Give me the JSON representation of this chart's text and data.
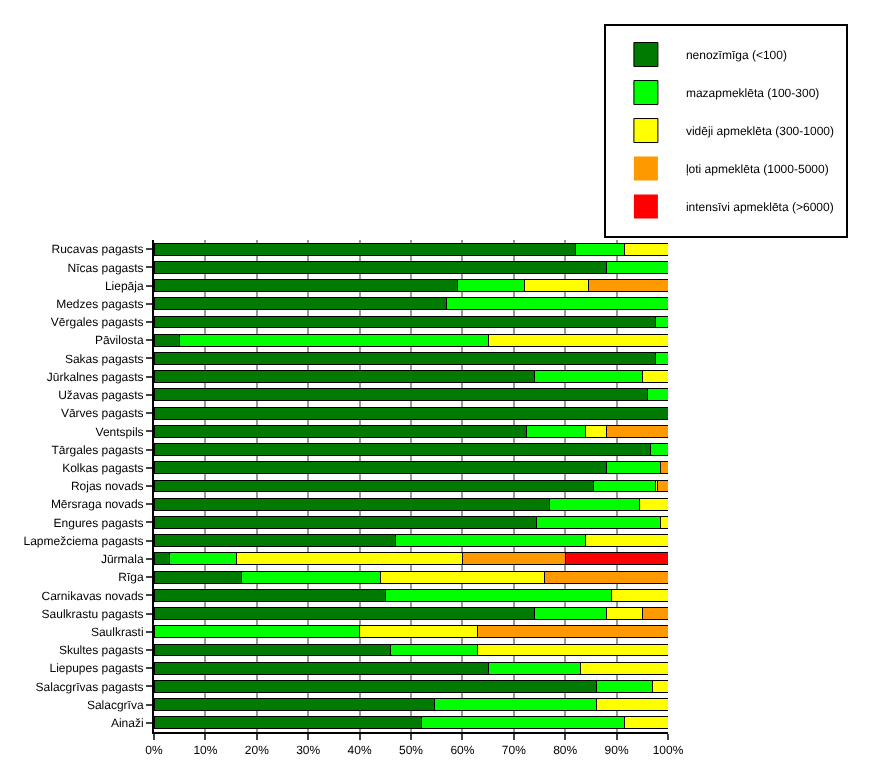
{
  "chart_data": {
    "type": "bar",
    "orientation": "horizontal",
    "stacked": true,
    "categories": [
      "Rucavas pagasts",
      "Nīcas pagasts",
      "Liepāja",
      "Medzes pagasts",
      "Vērgales pagasts",
      "Pāvilosta",
      "Sakas pagasts",
      "Jūrkalnes pagasts",
      "Užavas pagasts",
      "Vārves pagasts",
      "Ventspils",
      "Tārgales pagasts",
      "Kolkas pagasts",
      "Rojas novads",
      "Mērsraga novads",
      "Engures pagasts",
      "Lapmežciema pagasts",
      "Jūrmala",
      "Rīga",
      "Carnikavas novads",
      "Saulkrastu pagasts",
      "Saulkrasti",
      "Skultes pagasts",
      "Liepupes pagasts",
      "Salacgrīvas pagasts",
      "Salacgrīva",
      "Ainaži"
    ],
    "series": [
      {
        "name": "nenozīmīga (<100)",
        "color": "#007a00",
        "values": [
          82,
          88,
          59,
          57,
          97.5,
          5,
          97.5,
          74,
          96,
          100,
          72.5,
          96.5,
          88,
          85.5,
          77,
          74.5,
          47,
          3,
          17,
          45,
          74,
          0,
          46,
          65,
          86,
          54.5,
          52
        ]
      },
      {
        "name": "mazapmeklēta (100-300)",
        "color": "#00ff00",
        "values": [
          9.5,
          12,
          13,
          43,
          2.5,
          60,
          2.5,
          21,
          4,
          0,
          11.5,
          3.5,
          10.5,
          12,
          17.5,
          24,
          37,
          13,
          27,
          44,
          14,
          40,
          17,
          18,
          11,
          31.5,
          39.5
        ]
      },
      {
        "name": "vidēji apmeklēta (300-1000)",
        "color": "#ffff00",
        "values": [
          8.5,
          0,
          12.5,
          0,
          0,
          35,
          0,
          5,
          0,
          0,
          4,
          0,
          0,
          0.5,
          5.5,
          1.5,
          16,
          44,
          32,
          11,
          7,
          23,
          37,
          17,
          3,
          14,
          8.5
        ]
      },
      {
        "name": "ļoti apmeklēta (1000-5000)",
        "color": "#ff9900",
        "values": [
          0,
          0,
          15.5,
          0,
          0,
          0,
          0,
          0,
          0,
          0,
          12,
          0,
          1.5,
          2,
          0,
          0,
          0,
          20,
          24,
          0,
          5,
          37,
          0,
          0,
          0,
          0,
          0
        ]
      },
      {
        "name": "intensīvi apmeklēta (>6000)",
        "color": "#ff0000",
        "values": [
          0,
          0,
          0,
          0,
          0,
          0,
          0,
          0,
          0,
          0,
          0,
          0,
          0,
          0,
          0,
          0,
          0,
          20,
          0,
          0,
          0,
          0,
          0,
          0,
          0,
          0,
          0
        ]
      }
    ],
    "xlim": [
      0,
      100
    ],
    "xticks": [
      {
        "value": 0,
        "label": "0%"
      },
      {
        "value": 10,
        "label": "10%"
      },
      {
        "value": 20,
        "label": "20%"
      },
      {
        "value": 30,
        "label": "30%"
      },
      {
        "value": 40,
        "label": "40%"
      },
      {
        "value": 50,
        "label": "50%"
      },
      {
        "value": 60,
        "label": "60%"
      },
      {
        "value": 70,
        "label": "70%"
      },
      {
        "value": 80,
        "label": "80%"
      },
      {
        "value": 90,
        "label": "90%"
      },
      {
        "value": 100,
        "label": "100%"
      }
    ],
    "grid": "x",
    "legend": "top right"
  }
}
